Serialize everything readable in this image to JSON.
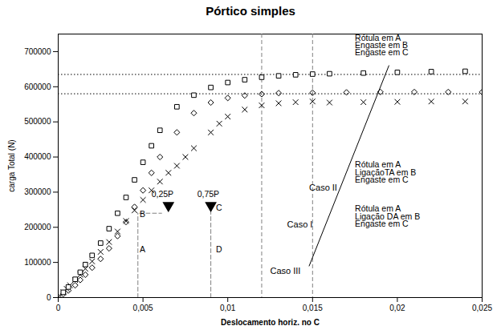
{
  "chart_data": {
    "type": "scatter",
    "title": "Pórtico simples",
    "xlabel": "Deslocamento horiz. no C",
    "ylabel": "carga Total (N)",
    "xlim": [
      0,
      0.025
    ],
    "ylim": [
      0,
      750000
    ],
    "xticks": [
      0,
      {
        "value": 0.005,
        "label": "0,005"
      },
      {
        "value": 0.01,
        "label": "0,01"
      },
      {
        "value": 0.015,
        "label": "0,015"
      },
      {
        "value": 0.02,
        "label": "0,02"
      },
      {
        "value": 0.025,
        "label": "0,025"
      }
    ],
    "yticks": [
      0,
      100000,
      200000,
      300000,
      400000,
      500000,
      600000,
      700000
    ],
    "grid": false,
    "series": [
      {
        "name": "Caso I",
        "color": "black",
        "marker": "x",
        "label_x": 0.0135,
        "label_y": 200000,
        "x": [
          0.0001,
          0.0003,
          0.0005,
          0.0007,
          0.001,
          0.0013,
          0.0016,
          0.002,
          0.0025,
          0.003,
          0.0035,
          0.004,
          0.0045,
          0.005,
          0.0055,
          0.006,
          0.0065,
          0.007,
          0.0075,
          0.008,
          0.009,
          0.0095,
          0.01,
          0.011,
          0.012,
          0.013,
          0.014,
          0.015,
          0.016,
          0.018,
          0.02,
          0.022,
          0.024
        ],
        "values": [
          5000,
          15000,
          25000,
          35000,
          50000,
          65000,
          82000,
          103000,
          130000,
          158000,
          188000,
          218000,
          248000,
          278000,
          305000,
          330000,
          355000,
          375000,
          400000,
          425000,
          470000,
          495000,
          515000,
          535000,
          547000,
          553000,
          556000,
          558000,
          555000,
          556000,
          557000,
          558000,
          558000
        ]
      },
      {
        "name": "Caso II",
        "color": "black",
        "marker": "diamond",
        "label_x": 0.0148,
        "label_y": 305000,
        "x": [
          0.0003,
          0.0006,
          0.001,
          0.0013,
          0.0016,
          0.002,
          0.0025,
          0.003,
          0.0035,
          0.004,
          0.0045,
          0.005,
          0.0055,
          0.006,
          0.007,
          0.008,
          0.009,
          0.01,
          0.011,
          0.012,
          0.013,
          0.015,
          0.017,
          0.019,
          0.021,
          0.023,
          0.025
        ],
        "values": [
          10000,
          20000,
          35000,
          50000,
          65000,
          85000,
          110000,
          140000,
          175000,
          215000,
          258000,
          305000,
          355000,
          400000,
          470000,
          525000,
          555000,
          568000,
          575000,
          579000,
          582000,
          583000,
          584000,
          585000,
          585000,
          585000,
          585000
        ]
      },
      {
        "name": "Caso III",
        "color": "black",
        "marker": "square",
        "label_x": 0.0125,
        "label_y": 67000,
        "x": [
          0.0003,
          0.0006,
          0.001,
          0.0013,
          0.0016,
          0.002,
          0.0025,
          0.003,
          0.0035,
          0.004,
          0.0045,
          0.005,
          0.0055,
          0.006,
          0.007,
          0.008,
          0.009,
          0.01,
          0.011,
          0.012,
          0.013,
          0.014,
          0.015,
          0.016,
          0.018,
          0.02,
          0.022,
          0.024
        ],
        "values": [
          15000,
          30000,
          52000,
          72000,
          94000,
          120000,
          155000,
          196000,
          240000,
          285000,
          335000,
          385000,
          432000,
          476000,
          543000,
          576000,
          598000,
          612000,
          620000,
          627000,
          631000,
          634000,
          636000,
          637000,
          639000,
          641000,
          643000,
          644000
        ]
      }
    ],
    "reference_lines": [
      {
        "axis": "y",
        "value": 635000,
        "color": "black",
        "line_style": "dotted"
      },
      {
        "axis": "y",
        "value": 580000,
        "color": "black",
        "line_style": "dotted"
      },
      {
        "axis": "x",
        "value": 0.012,
        "color": "gray",
        "line_style": "dashed"
      },
      {
        "axis": "x",
        "value": 0.015,
        "color": "gray",
        "line_style": "dashed"
      }
    ],
    "segments": [
      {
        "x": [
          0.0047,
          0.0047
        ],
        "y": [
          0,
          240000
        ],
        "color": "gray",
        "line_style": "dashed"
      },
      {
        "x": [
          0.009,
          0.009
        ],
        "y": [
          0,
          250000
        ],
        "color": "gray",
        "line_style": "dashed"
      },
      {
        "x": [
          0.0048,
          0.0061
        ],
        "y": [
          240000,
          240000
        ],
        "color": "gray",
        "line_style": "dashed"
      },
      {
        "x": [
          0.0148,
          0.0195
        ],
        "y": [
          90000,
          660000
        ],
        "color": "black",
        "line_style": "solid"
      }
    ],
    "markers": [
      {
        "x": 0.0065,
        "y": 262000,
        "marker": "triangle_down",
        "color": "black"
      },
      {
        "x": 0.009,
        "y": 262000,
        "marker": "triangle_down",
        "color": "black"
      }
    ],
    "annotations": [
      {
        "text": "A",
        "x": 0.0048,
        "y": 128000
      },
      {
        "text": "B",
        "x": 0.0048,
        "y": 228000
      },
      {
        "text": "D",
        "x": 0.0093,
        "y": 128000
      },
      {
        "text": "C",
        "x": 0.0093,
        "y": 248000
      },
      {
        "text": "0,25P",
        "x": 0.0055,
        "y": 286000
      },
      {
        "text": "0,75P",
        "x": 0.0082,
        "y": 286000
      },
      {
        "text": "Rótula em A",
        "x": 0.0175,
        "y": 730000
      },
      {
        "text": "Engaste em B",
        "x": 0.0175,
        "y": 710000
      },
      {
        "text": "Engaste em C",
        "x": 0.0175,
        "y": 690000
      },
      {
        "text": "Rótula em A",
        "x": 0.0175,
        "y": 370000
      },
      {
        "text": "LigaçãoTA em B",
        "x": 0.0175,
        "y": 348000
      },
      {
        "text": "Engaste em C",
        "x": 0.0175,
        "y": 326000
      },
      {
        "text": "Rótula em A",
        "x": 0.0175,
        "y": 245000
      },
      {
        "text": "Ligação DA em B",
        "x": 0.0175,
        "y": 223000
      },
      {
        "text": "Engaste em C",
        "x": 0.0175,
        "y": 201000
      }
    ]
  }
}
